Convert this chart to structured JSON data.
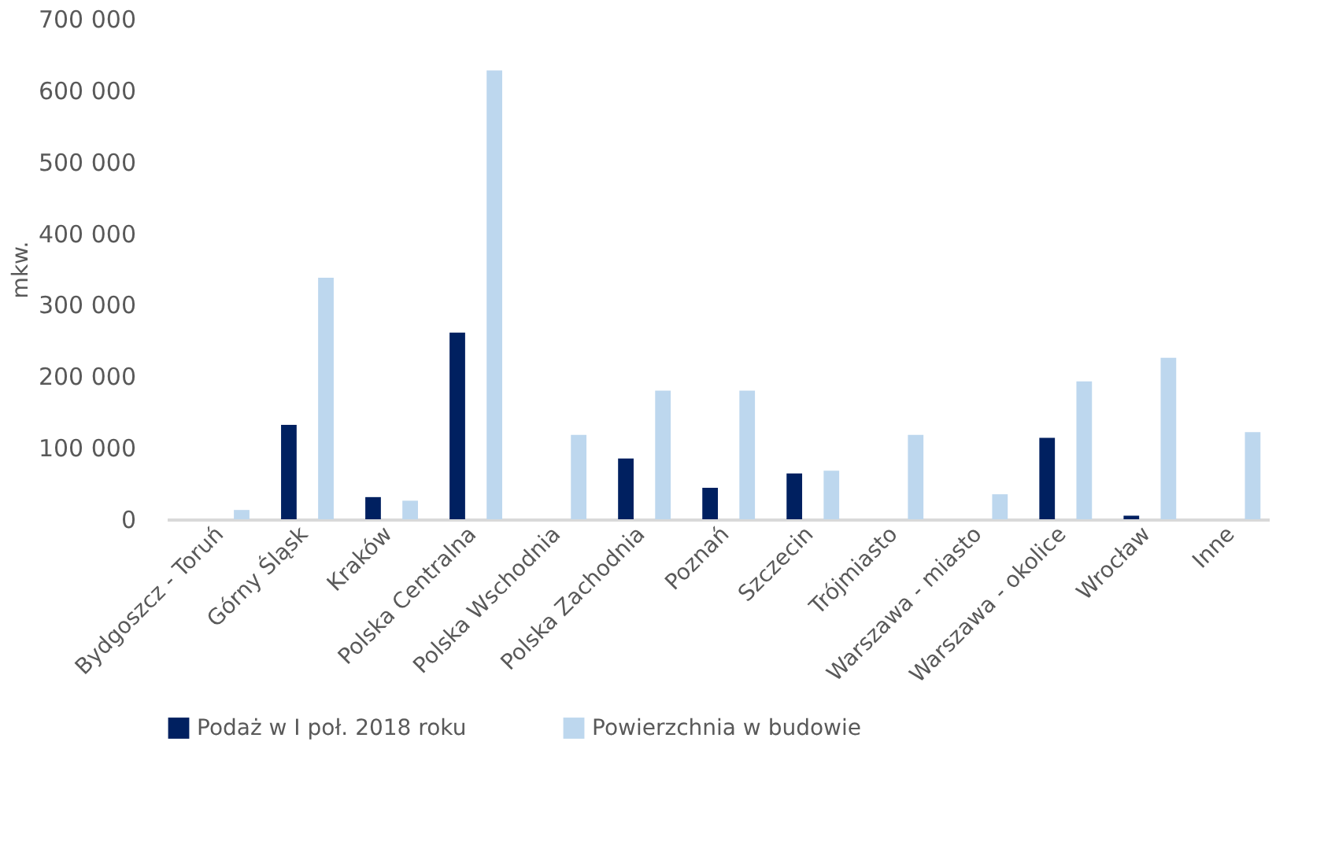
{
  "chart_data": {
    "type": "bar",
    "ylabel": "mkw.",
    "categories": [
      "Bydgoszcz - Toruń",
      "Górny Śląsk",
      "Kraków",
      "Polska Centralna",
      "Polska Wschodnia",
      "Polska Zachodnia",
      "Poznań",
      "Szczecin",
      "Trójmiasto",
      "Warszawa - miasto",
      "Warszawa - okolice",
      "Wrocław",
      "Inne"
    ],
    "series": [
      {
        "name": "Podaż w I poł. 2018 roku",
        "color": "#002060",
        "values": [
          0,
          132000,
          31000,
          261000,
          0,
          85000,
          44000,
          64000,
          0,
          0,
          114000,
          5000,
          0
        ]
      },
      {
        "name": "Powierzchnia w budowie",
        "color": "#bdd7ee",
        "values": [
          13000,
          338000,
          26000,
          628000,
          118000,
          180000,
          180000,
          68000,
          118000,
          35000,
          193000,
          226000,
          122000
        ]
      }
    ],
    "ylim": [
      0,
      700000
    ],
    "yticks": [
      0,
      {
        "value": 100000,
        "label": "100 000"
      },
      {
        "value": 200000,
        "label": "200 000"
      },
      {
        "value": 300000,
        "label": "300 000"
      },
      {
        "value": 400000,
        "label": "400 000"
      },
      {
        "value": 500000,
        "label": "500 000"
      },
      {
        "value": 600000,
        "label": "600 000"
      },
      {
        "value": 700000,
        "label": "700 000"
      }
    ],
    "grid": false,
    "legend": "bottom"
  }
}
